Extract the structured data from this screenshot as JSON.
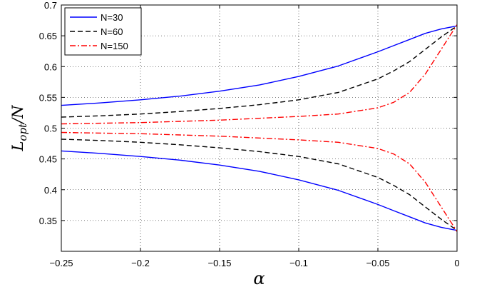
{
  "chart_data": {
    "type": "line",
    "title": "",
    "xlabel": "α",
    "ylabel_main": "L",
    "ylabel_sub": "opt",
    "ylabel_tail": "/N",
    "xlim": [
      -0.25,
      0
    ],
    "ylim": [
      0.3,
      0.7
    ],
    "grid": true,
    "legend_position": "top-left",
    "x_ticks": [
      -0.25,
      -0.2,
      -0.15,
      -0.1,
      -0.05,
      0
    ],
    "x_tick_labels": [
      "−0.25",
      "−0.2",
      "−0.15",
      "−0.1",
      "−0.05",
      "0"
    ],
    "y_ticks": [
      0.35,
      0.4,
      0.45,
      0.5,
      0.55,
      0.6,
      0.65,
      0.7
    ],
    "y_tick_labels": [
      "0.35",
      "0.4",
      "0.45",
      "0.5",
      "0.55",
      "0.6",
      "0.65",
      "0.7"
    ],
    "x": [
      -0.25,
      -0.225,
      -0.2,
      -0.175,
      -0.15,
      -0.125,
      -0.1,
      -0.075,
      -0.05,
      -0.04,
      -0.03,
      -0.02,
      -0.01,
      0
    ],
    "series": [
      {
        "name": "N=30",
        "color": "#0000ff",
        "dash": "solid",
        "upper": [
          0.537,
          0.541,
          0.546,
          0.552,
          0.56,
          0.57,
          0.584,
          0.601,
          0.624,
          0.634,
          0.644,
          0.654,
          0.661,
          0.666
        ],
        "lower": [
          0.463,
          0.459,
          0.454,
          0.448,
          0.44,
          0.43,
          0.416,
          0.399,
          0.376,
          0.366,
          0.356,
          0.346,
          0.339,
          0.334
        ]
      },
      {
        "name": "N=60",
        "color": "#000000",
        "dash": "dashed",
        "upper": [
          0.518,
          0.52,
          0.523,
          0.527,
          0.532,
          0.538,
          0.546,
          0.558,
          0.58,
          0.593,
          0.608,
          0.628,
          0.648,
          0.666
        ],
        "lower": [
          0.482,
          0.48,
          0.477,
          0.473,
          0.468,
          0.462,
          0.454,
          0.442,
          0.42,
          0.407,
          0.392,
          0.372,
          0.352,
          0.334
        ]
      },
      {
        "name": "N=150",
        "color": "#ff0000",
        "dash": "dashdot",
        "upper": [
          0.507,
          0.508,
          0.509,
          0.511,
          0.513,
          0.516,
          0.519,
          0.523,
          0.533,
          0.542,
          0.558,
          0.588,
          0.628,
          0.668
        ],
        "lower": [
          0.493,
          0.492,
          0.491,
          0.489,
          0.487,
          0.484,
          0.481,
          0.477,
          0.467,
          0.458,
          0.442,
          0.412,
          0.372,
          0.332
        ]
      }
    ]
  }
}
